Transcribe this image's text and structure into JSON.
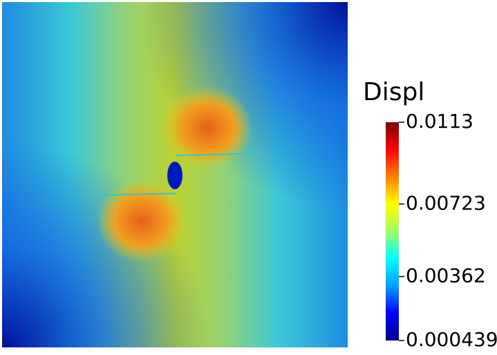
{
  "chart_data": {
    "type": "colorbar",
    "title": "Displ",
    "clim": [
      0.000439,
      0.0113
    ],
    "ticks": [
      0.000439,
      0.00362,
      0.00723,
      0.0113
    ],
    "colors": [
      "#00008f",
      "#0000ff",
      "#00a0ff",
      "#00ffff",
      "#a0ff60",
      "#ffff00",
      "#ff8000",
      "#ff0000",
      "#800000"
    ]
  }
}
